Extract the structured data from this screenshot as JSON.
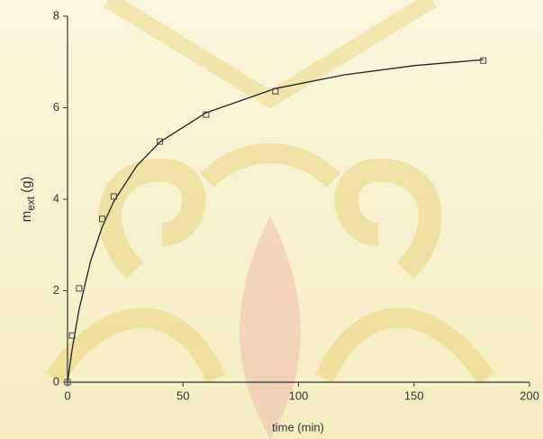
{
  "chart_data": {
    "type": "scatter",
    "xlabel": "time (min)",
    "ylabel": "m",
    "ylabel_sub": "ext",
    "ylabel_unit": "(g)",
    "xlim": [
      0,
      200
    ],
    "ylim": [
      0,
      8
    ],
    "xticks": [
      0,
      50,
      100,
      150,
      200
    ],
    "yticks": [
      0,
      2,
      4,
      6,
      8
    ],
    "points": {
      "color": "#444444",
      "x": [
        0,
        2,
        5,
        15,
        20,
        40,
        60,
        90,
        180
      ],
      "values": [
        0,
        1.02,
        2.05,
        3.57,
        4.06,
        5.26,
        5.85,
        6.36,
        7.03
      ]
    },
    "fit": {
      "color": "#222222",
      "x": [
        0,
        2,
        5,
        10,
        15,
        20,
        30,
        40,
        60,
        90,
        120,
        150,
        180
      ],
      "values": [
        0,
        0.72,
        1.59,
        2.65,
        3.39,
        3.95,
        4.73,
        5.25,
        5.89,
        6.42,
        6.72,
        6.92,
        7.05
      ]
    }
  }
}
